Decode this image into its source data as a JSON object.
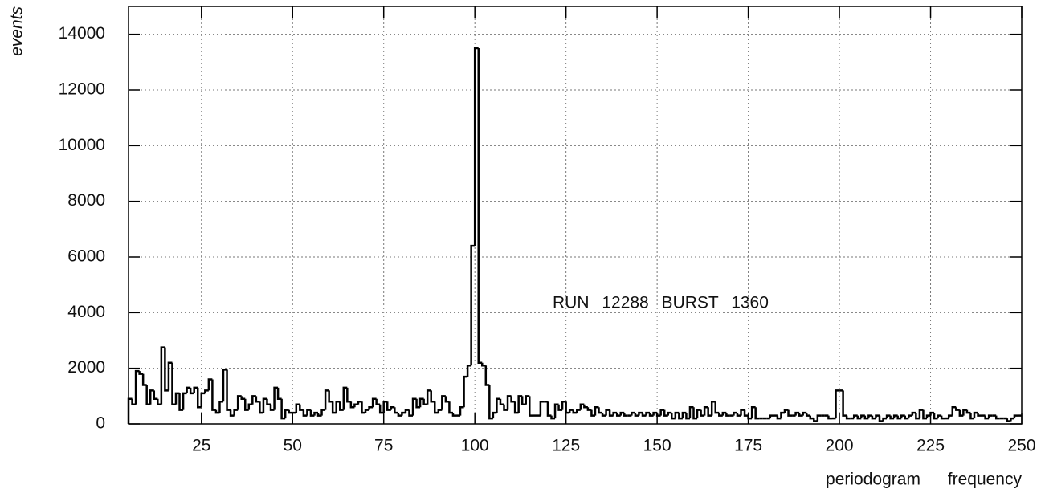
{
  "chart_data": {
    "type": "histogram",
    "ylabel": "events",
    "xlabel": "periodogram frequency",
    "annotation": "RUN 12288 BURST 1360",
    "color": "#000000",
    "grid": true,
    "xlim": [
      5,
      250
    ],
    "ylim": [
      0,
      15000
    ],
    "xticks": [
      25,
      50,
      75,
      100,
      125,
      150,
      175,
      200,
      225,
      250
    ],
    "yticks": [
      0,
      2000,
      4000,
      6000,
      8000,
      10000,
      12000,
      14000
    ],
    "bins": [
      5,
      6,
      7,
      8,
      9,
      10,
      11,
      12,
      13,
      14,
      15,
      16,
      17,
      18,
      19,
      20,
      21,
      22,
      23,
      24,
      25,
      26,
      27,
      28,
      29,
      30,
      31,
      32,
      33,
      34,
      35,
      36,
      37,
      38,
      39,
      40,
      41,
      42,
      43,
      44,
      45,
      46,
      47,
      48,
      49,
      50,
      51,
      52,
      53,
      54,
      55,
      56,
      57,
      58,
      59,
      60,
      61,
      62,
      63,
      64,
      65,
      66,
      67,
      68,
      69,
      70,
      71,
      72,
      73,
      74,
      75,
      76,
      77,
      78,
      79,
      80,
      81,
      82,
      83,
      84,
      85,
      86,
      87,
      88,
      89,
      90,
      91,
      92,
      93,
      94,
      95,
      96,
      97,
      98,
      99,
      100,
      101,
      102,
      103,
      104,
      105,
      106,
      107,
      108,
      109,
      110,
      111,
      112,
      113,
      114,
      115,
      116,
      117,
      118,
      119,
      120,
      121,
      122,
      123,
      124,
      125,
      126,
      127,
      128,
      129,
      130,
      131,
      132,
      133,
      134,
      135,
      136,
      137,
      138,
      139,
      140,
      141,
      142,
      143,
      144,
      145,
      146,
      147,
      148,
      149,
      150,
      151,
      152,
      153,
      154,
      155,
      156,
      157,
      158,
      159,
      160,
      161,
      162,
      163,
      164,
      165,
      166,
      167,
      168,
      169,
      170,
      171,
      172,
      173,
      174,
      175,
      176,
      177,
      178,
      179,
      180,
      181,
      182,
      183,
      184,
      185,
      186,
      187,
      188,
      189,
      190,
      191,
      192,
      193,
      194,
      195,
      196,
      197,
      198,
      199,
      200,
      201,
      202,
      203,
      204,
      205,
      206,
      207,
      208,
      209,
      210,
      211,
      212,
      213,
      214,
      215,
      216,
      217,
      218,
      219,
      220,
      221,
      222,
      223,
      224,
      225,
      226,
      227,
      228,
      229,
      230,
      231,
      232,
      233,
      234,
      235,
      236,
      237,
      238,
      239,
      240,
      241,
      242,
      243,
      244,
      245,
      246,
      247,
      248,
      249,
      250
    ],
    "values": [
      900,
      700,
      1900,
      1800,
      1400,
      700,
      1200,
      900,
      700,
      2750,
      1200,
      2200,
      700,
      1100,
      500,
      1100,
      1300,
      1100,
      1300,
      600,
      1100,
      1200,
      1600,
      500,
      400,
      800,
      1950,
      500,
      300,
      500,
      1000,
      900,
      500,
      700,
      1000,
      800,
      400,
      900,
      700,
      500,
      1300,
      900,
      200,
      500,
      400,
      400,
      700,
      500,
      300,
      500,
      300,
      400,
      300,
      500,
      1200,
      800,
      400,
      800,
      500,
      1300,
      800,
      600,
      700,
      800,
      400,
      500,
      600,
      900,
      700,
      400,
      800,
      500,
      600,
      400,
      300,
      400,
      500,
      300,
      900,
      600,
      900,
      700,
      1200,
      800,
      400,
      500,
      1000,
      800,
      400,
      300,
      300,
      600,
      1700,
      2100,
      6400,
      13500,
      2200,
      2100,
      1400,
      200,
      400,
      900,
      700,
      500,
      1000,
      800,
      400,
      1000,
      700,
      1000,
      300,
      300,
      300,
      800,
      800,
      300,
      200,
      700,
      500,
      800,
      400,
      500,
      400,
      500,
      700,
      600,
      500,
      300,
      600,
      400,
      300,
      500,
      300,
      400,
      300,
      400,
      300,
      300,
      400,
      300,
      400,
      300,
      400,
      300,
      400,
      300,
      500,
      300,
      400,
      200,
      400,
      200,
      400,
      200,
      600,
      200,
      500,
      300,
      600,
      300,
      800,
      400,
      300,
      400,
      300,
      300,
      400,
      300,
      500,
      300,
      200,
      600,
      200,
      200,
      200,
      200,
      300,
      300,
      200,
      400,
      500,
      300,
      300,
      400,
      300,
      400,
      300,
      200,
      100,
      300,
      300,
      300,
      200,
      200,
      1200,
      1200,
      300,
      200,
      200,
      300,
      200,
      300,
      200,
      300,
      200,
      300,
      100,
      200,
      300,
      200,
      300,
      200,
      300,
      200,
      300,
      400,
      200,
      500,
      200,
      300,
      400,
      200,
      300,
      200,
      200,
      300,
      600,
      500,
      300,
      500,
      400,
      200,
      400,
      300,
      300,
      200,
      300,
      300,
      200,
      200,
      200,
      100,
      200,
      300,
      300
    ]
  }
}
